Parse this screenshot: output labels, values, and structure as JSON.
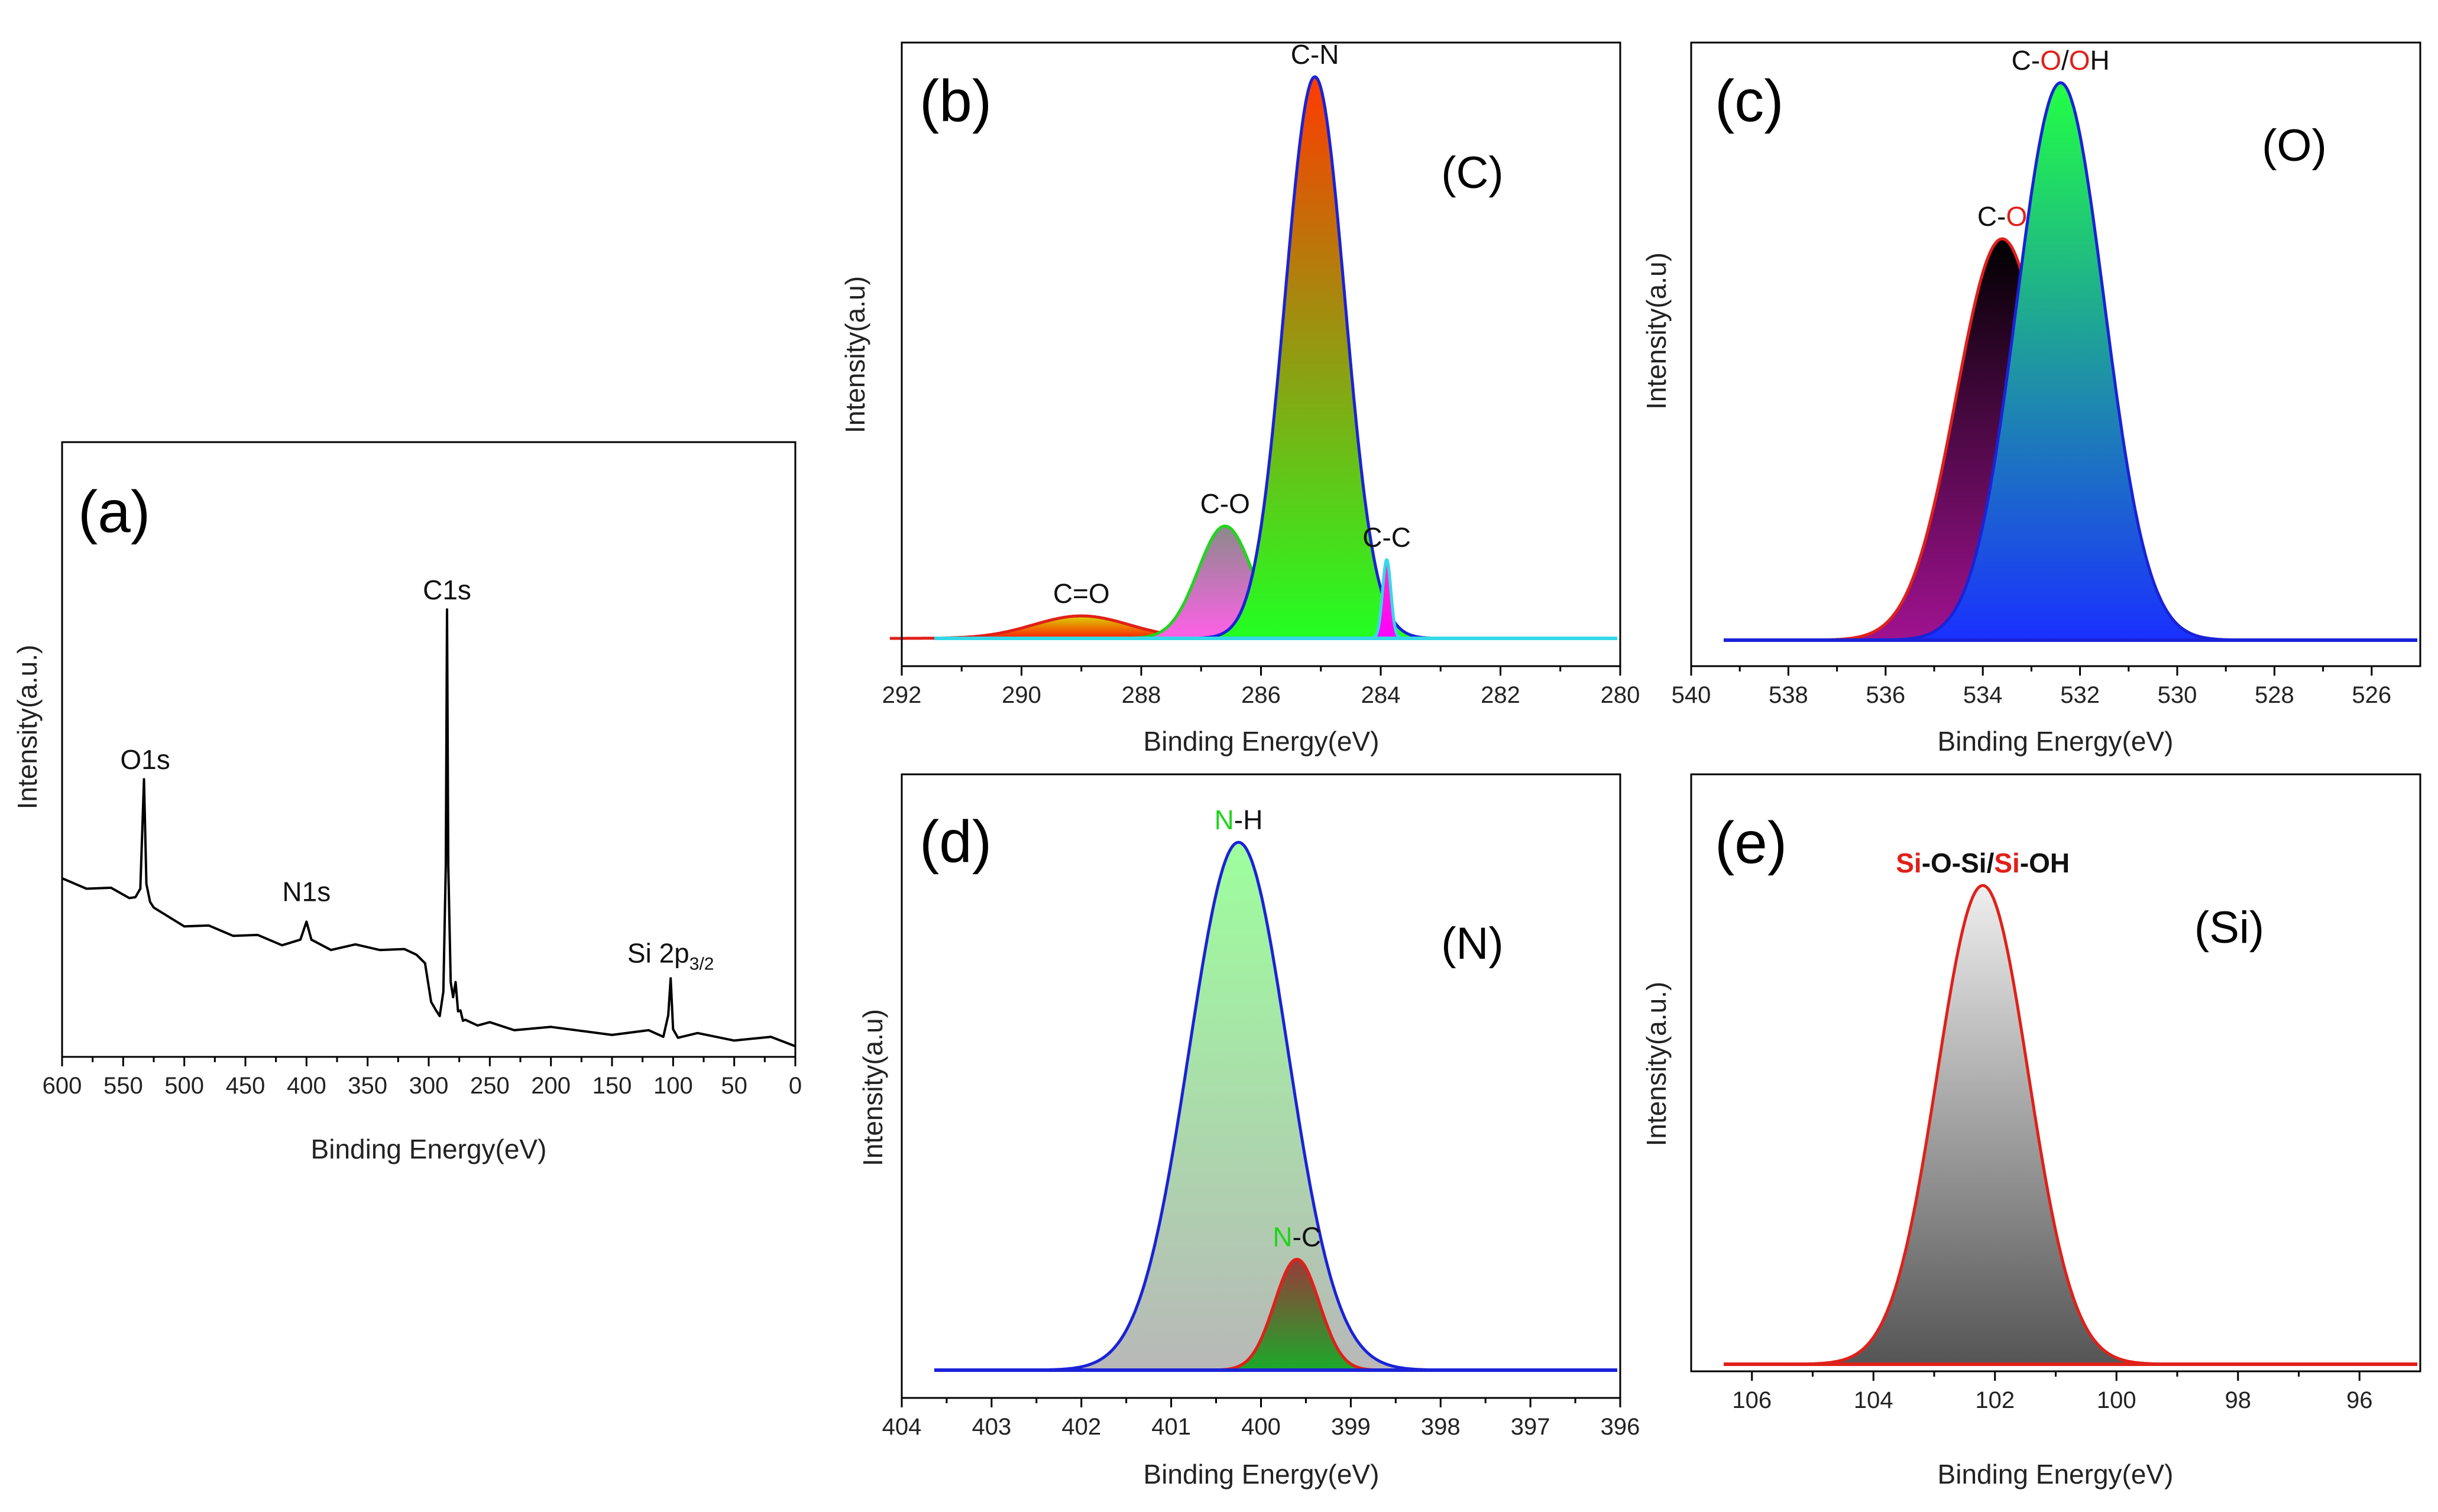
{
  "colors": {
    "red": "#e0201a",
    "green": "#21d41d",
    "blue": "#1a22d8",
    "cyan": "#35d8e8",
    "survey_line": "#000000"
  },
  "chart_data": [
    {
      "id": "a",
      "type": "line",
      "panel_label": "(a)",
      "title": "",
      "xlabel": "Binding Energy(eV)",
      "ylabel": "Intensity(a.u.)",
      "xlim": [
        600,
        0
      ],
      "ylim": [
        0,
        100
      ],
      "x_ticks": [
        "600",
        "550",
        "500",
        "450",
        "400",
        "350",
        "300",
        "250",
        "200",
        "150",
        "100",
        "50",
        "0"
      ],
      "peaks": [
        {
          "name": "O1s",
          "x": 532,
          "y": 57
        },
        {
          "name": "N1s",
          "x": 400,
          "y": 29
        },
        {
          "name": "C1s",
          "x": 285,
          "y": 93
        },
        {
          "name": "Si 2p",
          "subscript": "3/2",
          "x": 102,
          "y": 16
        }
      ],
      "series": [
        {
          "name": "survey",
          "x": [
            600,
            580,
            560,
            545,
            540,
            536,
            533,
            531,
            528,
            525,
            520,
            500,
            480,
            460,
            440,
            420,
            405,
            400,
            396,
            380,
            360,
            340,
            320,
            310,
            303,
            298,
            294,
            291,
            288,
            286,
            285,
            284,
            282,
            280,
            278,
            276,
            274,
            272,
            270,
            260,
            250,
            230,
            200,
            150,
            120,
            108,
            104,
            102,
            100,
            96,
            80,
            50,
            20,
            0
          ],
          "y": [
            36,
            35,
            34,
            33,
            32,
            35,
            57,
            36,
            31,
            31,
            29,
            27,
            26,
            25,
            24,
            23,
            23,
            28,
            23,
            22,
            22,
            22,
            21,
            21,
            18,
            11,
            8,
            8,
            12,
            40,
            93,
            40,
            14,
            12,
            14,
            9,
            8,
            7,
            6,
            6,
            5.5,
            5,
            4.5,
            4,
            3.8,
            3.6,
            7,
            16,
            4,
            3.4,
            3.2,
            2.8,
            2.4,
            1.6
          ]
        }
      ]
    },
    {
      "id": "b",
      "type": "area",
      "panel_label": "(b)",
      "element": "(C)",
      "xlabel": "Binding Energy(eV)",
      "ylabel": "Intensity(a.u)",
      "xlim": [
        292,
        280
      ],
      "ylim": [
        0,
        100
      ],
      "x_ticks": [
        "292",
        "290",
        "288",
        "286",
        "284",
        "282",
        "280"
      ],
      "baseline_color": "#35d8e8",
      "components": [
        {
          "name": "C=O",
          "center": 289.0,
          "height": 4,
          "sigma": 0.8,
          "fill_top": "#d8d500",
          "fill_bottom": "#ff2000",
          "stroke": "#e0201a"
        },
        {
          "name": "C-O",
          "center": 286.6,
          "height": 20,
          "sigma": 0.45,
          "fill_top": "#8a8a8a",
          "fill_bottom": "#ff60e8",
          "stroke": "#21d41d"
        },
        {
          "name": "C-N",
          "center": 285.1,
          "height": 100,
          "sigma": 0.5,
          "fill_top": "#ff3a00",
          "fill_bottom": "#22ff22",
          "stroke": "#1a22d8"
        },
        {
          "name": "C-C",
          "center": 283.9,
          "height": 14,
          "sigma": 0.07,
          "fill_top": "#ff30c0",
          "fill_bottom": "#ff00ff",
          "stroke": "#35d8e8"
        }
      ]
    },
    {
      "id": "c",
      "type": "area",
      "panel_label": "(c)",
      "element": "(O)",
      "xlabel": "Binding Energy(eV)",
      "ylabel": "Intensity(a.u)",
      "xlim": [
        540,
        525
      ],
      "ylim": [
        0,
        100
      ],
      "x_ticks": [
        "540",
        "538",
        "536",
        "534",
        "532",
        "530",
        "528",
        "526"
      ],
      "baseline_color": "#1a22d8",
      "components": [
        {
          "name": "C-O",
          "label_parts": [
            [
              "C-",
              "#111111"
            ],
            [
              "O",
              "#e0201a"
            ]
          ],
          "center": 533.6,
          "height": 72,
          "sigma": 0.95,
          "fill_top": "#000000",
          "fill_bottom": "#a01290",
          "stroke": "#e0201a"
        },
        {
          "name": "C-O/OH",
          "label_parts": [
            [
              "C-",
              "#111111"
            ],
            [
              "O",
              "#e0201a"
            ],
            [
              "/",
              "#111111"
            ],
            [
              "O",
              "#e0201a"
            ],
            [
              "H",
              "#111111"
            ]
          ],
          "center": 532.4,
          "height": 100,
          "sigma": 0.9,
          "fill_top": "#22ff44",
          "fill_bottom": "#1a30ff",
          "stroke": "#1a22d8"
        }
      ]
    },
    {
      "id": "d",
      "type": "area",
      "panel_label": "(d)",
      "element": "(N)",
      "xlabel": "Binding Energy(eV)",
      "ylabel": "Intensity(a.u)",
      "xlim": [
        404,
        396
      ],
      "ylim": [
        0,
        100
      ],
      "x_ticks": [
        "404",
        "403",
        "402",
        "401",
        "400",
        "399",
        "398",
        "397",
        "396"
      ],
      "baseline_color": "#1a22d8",
      "components": [
        {
          "name": "N-H",
          "label_parts": [
            [
              "N",
              "#21d41d"
            ],
            [
              "-H",
              "#111111"
            ]
          ],
          "center": 400.25,
          "height": 100,
          "sigma": 0.55,
          "fill_top": "#9dff9d",
          "fill_bottom": "#b8b8b8",
          "stroke": "#1a22d8"
        },
        {
          "name": "N-C",
          "label_parts": [
            [
              "N",
              "#21d41d"
            ],
            [
              "-C",
              "#111111"
            ]
          ],
          "center": 399.6,
          "height": 21,
          "sigma": 0.25,
          "fill_top": "#9a3a3a",
          "fill_bottom": "#1aaa2a",
          "stroke": "#e0201a"
        }
      ]
    },
    {
      "id": "e",
      "type": "area",
      "panel_label": "(e)",
      "element": "(Si)",
      "xlabel": "Binding Energy(eV)",
      "ylabel": "Intensity(a.u.)",
      "xlim": [
        107,
        95
      ],
      "ylim": [
        0,
        100
      ],
      "x_ticks": [
        "106",
        "104",
        "102",
        "100",
        "98",
        "96"
      ],
      "baseline_color": "#e0201a",
      "label_bold": true,
      "components": [
        {
          "name": "Si-O-Si/Si-OH",
          "label_parts": [
            [
              "Si",
              "#e0201a"
            ],
            [
              "-O-Si/",
              "#111111"
            ],
            [
              "Si",
              "#e0201a"
            ],
            [
              "-OH",
              "#111111"
            ]
          ],
          "center": 102.2,
          "height": 100,
          "sigma": 0.75,
          "fill_top": "#eeeeee",
          "fill_bottom": "#555555",
          "stroke": "#e0201a"
        }
      ]
    }
  ]
}
